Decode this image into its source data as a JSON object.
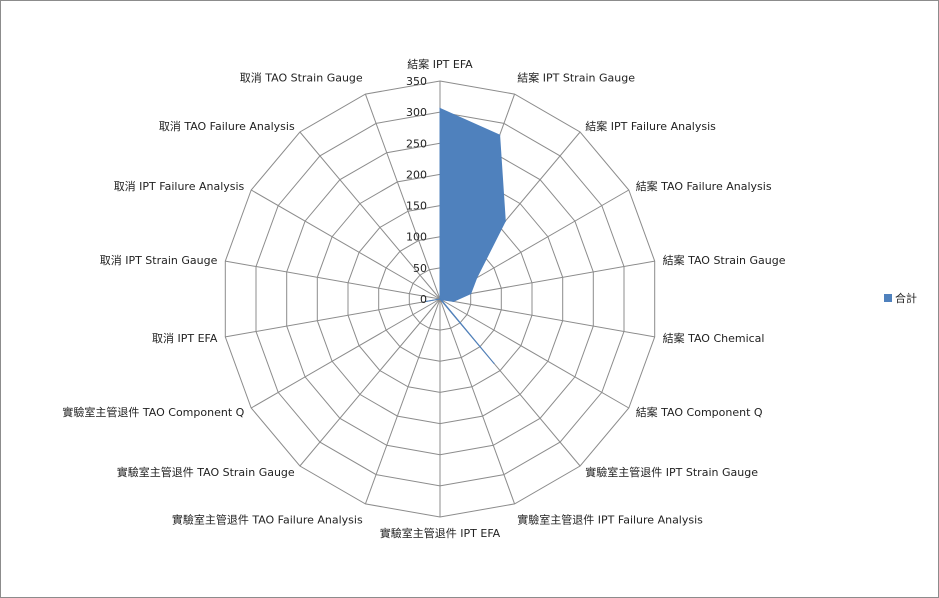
{
  "chart_data": {
    "type": "radar",
    "categories": [
      "結案 IPT EFA",
      "結案 IPT Strain Gauge",
      "結案 IPT Failure Analysis",
      "結案 TAO Failure Analysis",
      "結案 TAO Strain Gauge",
      "結案 TAO Chemical",
      "結案 TAO Component Q",
      "實驗室主管退件 IPT Strain Gauge",
      "實驗室主管退件 IPT Failure Analysis",
      "實驗室主管退件 IPT EFA",
      "實驗室主管退件 TAO Failure Analysis",
      "實驗室主管退件 TAO Strain Gauge",
      "實驗室主管退件 TAO Component Q",
      "取消 IPT EFA",
      "取消 IPT Strain Gauge",
      "取消 IPT Failure Analysis",
      "取消 TAO Failure Analysis",
      "取消 TAO Strain Gauge"
    ],
    "series": [
      {
        "name": "合計",
        "color": "#4f81bd",
        "values": [
          306,
          280,
          163,
          68,
          50,
          22,
          2,
          135,
          0,
          0,
          0,
          0,
          0,
          22,
          0,
          0,
          0,
          0
        ]
      }
    ],
    "rlim": [
      0,
      350
    ],
    "ticks": [
      "0",
      "50",
      "100",
      "150",
      "200",
      "250",
      "300",
      "350"
    ],
    "legend_position": "right",
    "grid": true
  }
}
